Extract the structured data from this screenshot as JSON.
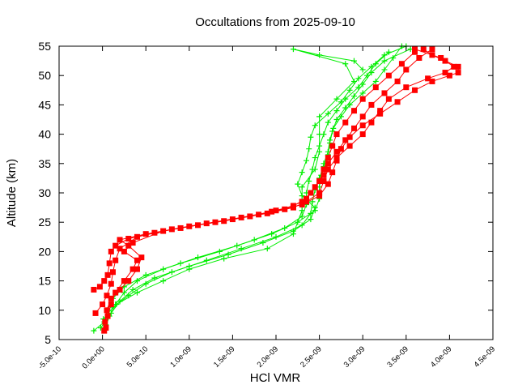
{
  "chart_data": {
    "type": "line",
    "title": "Occultations from 2025-09-10",
    "xlabel": "HCl VMR",
    "ylabel": "Altitude (km)",
    "xlim": [
      -5e-10,
      4.5e-09
    ],
    "ylim": [
      5,
      55
    ],
    "x_ticks": [
      -5e-10,
      0,
      5e-10,
      1e-09,
      1.5e-09,
      2e-09,
      2.5e-09,
      3e-09,
      3.5e-09,
      4e-09,
      4.5e-09
    ],
    "x_tick_labels": [
      "-5.0e-10",
      "0.0e+00",
      "5.0e-10",
      "1.0e-09",
      "1.5e-09",
      "2.0e-09",
      "2.5e-09",
      "3.0e-09",
      "3.5e-09",
      "4.0e-09",
      "4.5e-09"
    ],
    "y_ticks": [
      5,
      10,
      15,
      20,
      25,
      30,
      35,
      40,
      45,
      50,
      55
    ],
    "y_tick_labels": [
      "5",
      "10",
      "15",
      "20",
      "25",
      "30",
      "35",
      "40",
      "45",
      "50",
      "55"
    ],
    "grid": false,
    "legend": "none",
    "series": [
      {
        "color": "#00ee00",
        "marker": "plus",
        "points": [
          [
            -1e-10,
            6.5
          ],
          [
            2e-11,
            8
          ],
          [
            6e-11,
            10
          ],
          [
            1.2e-10,
            12
          ],
          [
            2.5e-10,
            14
          ],
          [
            5e-10,
            16
          ],
          [
            9e-10,
            18
          ],
          [
            1.35e-09,
            20
          ],
          [
            1.75e-09,
            22
          ],
          [
            2.1e-09,
            24
          ],
          [
            2.3e-09,
            26
          ],
          [
            2.35e-09,
            28
          ],
          [
            2.35e-09,
            30
          ],
          [
            2.38e-09,
            32
          ],
          [
            2.42e-09,
            34
          ],
          [
            2.45e-09,
            36
          ],
          [
            2.5e-09,
            38
          ],
          [
            2.55e-09,
            40
          ],
          [
            2.6e-09,
            42
          ],
          [
            2.7e-09,
            44
          ],
          [
            2.8e-09,
            46
          ],
          [
            2.95e-09,
            48
          ],
          [
            3.05e-09,
            50
          ],
          [
            3.15e-09,
            52
          ],
          [
            3.3e-09,
            54
          ]
        ]
      },
      {
        "color": "#00ee00",
        "marker": "plus",
        "points": [
          [
            -2e-11,
            7
          ],
          [
            8e-11,
            9
          ],
          [
            1.5e-10,
            11
          ],
          [
            2.5e-10,
            13
          ],
          [
            4e-10,
            15
          ],
          [
            7e-10,
            17
          ],
          [
            1.1e-09,
            19
          ],
          [
            1.55e-09,
            21
          ],
          [
            1.95e-09,
            23
          ],
          [
            2.25e-09,
            25
          ],
          [
            2.45e-09,
            27
          ],
          [
            2.5e-09,
            29
          ],
          [
            2.5e-09,
            31
          ],
          [
            2.52e-09,
            33
          ],
          [
            2.55e-09,
            35
          ],
          [
            2.6e-09,
            37
          ],
          [
            2.62e-09,
            39
          ],
          [
            2.66e-09,
            41
          ],
          [
            2.75e-09,
            43
          ],
          [
            2.85e-09,
            45
          ],
          [
            3e-09,
            47
          ],
          [
            3.15e-09,
            49
          ],
          [
            3.25e-09,
            51
          ],
          [
            3.35e-09,
            53
          ],
          [
            3.45e-09,
            55
          ]
        ]
      },
      {
        "color": "#00ee00",
        "marker": "plus",
        "points": [
          [
            4e-11,
            7.5
          ],
          [
            1e-10,
            9.5
          ],
          [
            2e-10,
            11.5
          ],
          [
            3.5e-10,
            13.5
          ],
          [
            6e-10,
            15.5
          ],
          [
            1e-09,
            17.5
          ],
          [
            1.45e-09,
            19.5
          ],
          [
            1.85e-09,
            21.5
          ],
          [
            2.2e-09,
            23.5
          ],
          [
            2.4e-09,
            25.5
          ],
          [
            2.45e-09,
            27.5
          ],
          [
            2.3e-09,
            29.5
          ],
          [
            2.25e-09,
            31.5
          ],
          [
            2.3e-09,
            33.5
          ],
          [
            2.35e-09,
            35.5
          ],
          [
            2.38e-09,
            37.5
          ],
          [
            2.4e-09,
            39.5
          ],
          [
            2.45e-09,
            41.5
          ],
          [
            2.6e-09,
            43.5
          ],
          [
            2.75e-09,
            45.5
          ],
          [
            2.85e-09,
            47.5
          ],
          [
            2.95e-09,
            49.5
          ],
          [
            3.1e-09,
            51.5
          ],
          [
            3.25e-09,
            53.5
          ],
          [
            3.5e-09,
            55
          ]
        ]
      },
      {
        "color": "#00ee00",
        "marker": "plus",
        "points": [
          [
            1e-11,
            8.5
          ],
          [
            1.2e-10,
            10.5
          ],
          [
            3e-10,
            12.5
          ],
          [
            5e-10,
            14.5
          ],
          [
            8e-10,
            16.5
          ],
          [
            1.2e-09,
            18.5
          ],
          [
            1.6e-09,
            20.5
          ],
          [
            2e-09,
            22.5
          ],
          [
            2.3e-09,
            24.5
          ],
          [
            2.4e-09,
            26.5
          ],
          [
            2.42e-09,
            28.5
          ],
          [
            2.45e-09,
            30.5
          ],
          [
            2.5e-09,
            32.5
          ],
          [
            2.55e-09,
            34.5
          ],
          [
            2.6e-09,
            36.5
          ],
          [
            2.62e-09,
            38.5
          ],
          [
            2.65e-09,
            40.5
          ],
          [
            2.7e-09,
            42.5
          ],
          [
            2.8e-09,
            44.5
          ],
          [
            2.9e-09,
            46.5
          ],
          [
            3e-09,
            48.5
          ],
          [
            3.1e-09,
            50.5
          ],
          [
            3.25e-09,
            52.5
          ],
          [
            3.55e-09,
            54.5
          ]
        ]
      },
      {
        "color": "#00ee00",
        "marker": "plus",
        "points": [
          [
            1.6e-10,
            11
          ],
          [
            4e-10,
            13
          ],
          [
            7e-10,
            15
          ],
          [
            1e-09,
            17
          ],
          [
            1.4e-09,
            18.8
          ],
          [
            1.9e-09,
            20.5
          ],
          [
            2.2e-09,
            23
          ],
          [
            2.3e-09,
            27
          ],
          [
            2.3e-09,
            31
          ],
          [
            2.45e-09,
            34
          ],
          [
            2.5e-09,
            37
          ],
          [
            2.5e-09,
            40
          ],
          [
            2.5e-09,
            43
          ],
          [
            2.7e-09,
            46
          ],
          [
            2.9e-09,
            49
          ],
          [
            2.8e-09,
            52
          ],
          [
            2.2e-09,
            54.5
          ],
          [
            2.5e-09,
            53.5
          ],
          [
            2.9e-09,
            52.5
          ],
          [
            3e-09,
            51
          ]
        ]
      },
      {
        "color": "#ff0000",
        "marker": "square",
        "points": [
          [
            -1e-10,
            13.5
          ],
          [
            -3e-11,
            14
          ],
          [
            2e-11,
            15
          ],
          [
            6e-11,
            16
          ],
          [
            8e-11,
            18
          ],
          [
            1e-10,
            20
          ],
          [
            1.5e-10,
            21
          ],
          [
            3e-10,
            22.2
          ],
          [
            6e-10,
            23.2
          ],
          [
            1e-09,
            24.3
          ],
          [
            1.4e-09,
            25.2
          ],
          [
            1.8e-09,
            26.3
          ],
          [
            2.1e-09,
            27.2
          ],
          [
            2.3e-09,
            28.5
          ],
          [
            2.4e-09,
            30
          ],
          [
            2.5e-09,
            32
          ],
          [
            2.55e-09,
            34
          ],
          [
            2.6e-09,
            36
          ],
          [
            2.65e-09,
            38
          ],
          [
            2.7e-09,
            40
          ],
          [
            2.8e-09,
            42
          ],
          [
            2.9e-09,
            44
          ],
          [
            3e-09,
            46
          ],
          [
            3.15e-09,
            48
          ],
          [
            3.3e-09,
            50
          ],
          [
            3.45e-09,
            52
          ],
          [
            3.6e-09,
            54
          ]
        ]
      },
      {
        "color": "#ff0000",
        "marker": "square",
        "points": [
          [
            -8e-11,
            9.5
          ],
          [
            0,
            11
          ],
          [
            5e-11,
            12.5
          ],
          [
            1e-10,
            14.5
          ],
          [
            1.2e-10,
            16.5
          ],
          [
            1.5e-10,
            18.5
          ],
          [
            2e-10,
            20.5
          ],
          [
            4e-10,
            22.5
          ],
          [
            8e-10,
            23.8
          ],
          [
            1.2e-09,
            24.8
          ],
          [
            1.6e-09,
            25.8
          ],
          [
            1.95e-09,
            26.8
          ],
          [
            2.2e-09,
            27.8
          ],
          [
            2.35e-09,
            29
          ],
          [
            2.45e-09,
            31
          ],
          [
            2.55e-09,
            33
          ],
          [
            2.6e-09,
            35
          ],
          [
            2.7e-09,
            37
          ],
          [
            2.8e-09,
            39
          ],
          [
            2.9e-09,
            41
          ],
          [
            3e-09,
            43
          ],
          [
            3.1e-09,
            45
          ],
          [
            3.25e-09,
            47
          ],
          [
            3.4e-09,
            49
          ],
          [
            3.5e-09,
            51
          ],
          [
            3.65e-09,
            53
          ],
          [
            3.8e-09,
            54.5
          ]
        ]
      },
      {
        "color": "#ff0000",
        "marker": "square",
        "points": [
          [
            2e-11,
            6.5
          ],
          [
            3e-11,
            8
          ],
          [
            5e-11,
            10
          ],
          [
            1e-10,
            12
          ],
          [
            2e-10,
            13.5
          ],
          [
            3e-10,
            15
          ],
          [
            4e-10,
            17
          ],
          [
            4.5e-10,
            19
          ],
          [
            3e-10,
            21
          ],
          [
            2e-10,
            22
          ],
          [
            5e-10,
            23
          ],
          [
            9e-10,
            24
          ],
          [
            1.3e-09,
            25
          ],
          [
            1.7e-09,
            26
          ],
          [
            2e-09,
            27
          ],
          [
            2.3e-09,
            28
          ],
          [
            2.5e-09,
            29.5
          ],
          [
            2.6e-09,
            31.5
          ],
          [
            2.65e-09,
            33.5
          ],
          [
            2.7e-09,
            35.5
          ],
          [
            2.75e-09,
            37.5
          ],
          [
            2.85e-09,
            39.5
          ],
          [
            3e-09,
            41.5
          ],
          [
            3.2e-09,
            43.5
          ],
          [
            3.4e-09,
            45.5
          ],
          [
            3.6e-09,
            47.5
          ],
          [
            3.8e-09,
            49
          ],
          [
            4e-09,
            50
          ],
          [
            4.1e-09,
            50.5
          ],
          [
            4.1e-09,
            51.5
          ],
          [
            3.95e-09,
            52.5
          ],
          [
            3.8e-09,
            53.5
          ],
          [
            3.7e-09,
            54.5
          ]
        ]
      },
      {
        "color": "#ff0000",
        "marker": "square",
        "points": [
          [
            4e-11,
            7
          ],
          [
            6e-11,
            9
          ],
          [
            1e-10,
            11
          ],
          [
            1.5e-10,
            13
          ],
          [
            2.5e-10,
            15
          ],
          [
            3.5e-10,
            17
          ],
          [
            4e-10,
            18.5
          ],
          [
            2.5e-10,
            20
          ],
          [
            3.5e-10,
            21.5
          ],
          [
            7e-10,
            23.5
          ],
          [
            1.1e-09,
            24.5
          ],
          [
            1.5e-09,
            25.5
          ],
          [
            1.9e-09,
            26.5
          ],
          [
            2.2e-09,
            27.5
          ],
          [
            2.35e-09,
            28.5
          ],
          [
            2.5e-09,
            30
          ],
          [
            2.55e-09,
            32
          ],
          [
            2.6e-09,
            34
          ],
          [
            2.7e-09,
            36
          ],
          [
            2.85e-09,
            38
          ],
          [
            3e-09,
            40
          ],
          [
            3.1e-09,
            42
          ],
          [
            3.2e-09,
            44
          ],
          [
            3.3e-09,
            46
          ],
          [
            3.5e-09,
            48
          ],
          [
            3.75e-09,
            49.5
          ],
          [
            3.95e-09,
            50.5
          ],
          [
            4.05e-09,
            51.5
          ],
          [
            3.9e-09,
            53
          ],
          [
            3.6e-09,
            54.5
          ]
        ]
      }
    ]
  }
}
